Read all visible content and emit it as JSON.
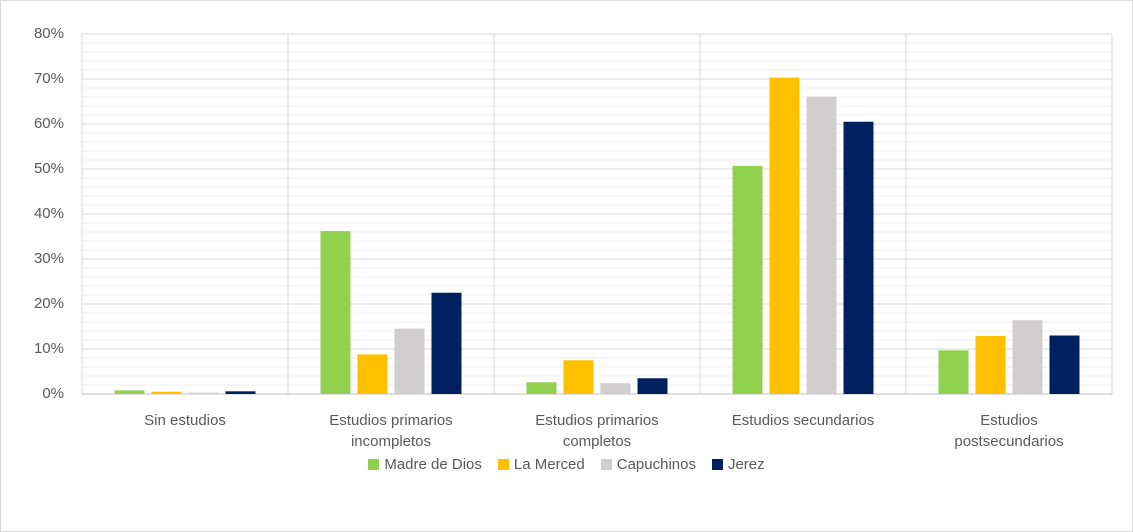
{
  "chart_data": {
    "type": "bar",
    "categories": [
      "Sin estudios",
      "Estudios primarios incompletos",
      "Estudios primarios completos",
      "Estudios secundarios",
      "Estudios postsecundarios"
    ],
    "series": [
      {
        "name": "Madre de Dios",
        "color": "#92d050",
        "values": [
          0.8,
          36.2,
          2.6,
          50.7,
          9.7
        ]
      },
      {
        "name": "La Merced",
        "color": "#ffc000",
        "values": [
          0.5,
          8.8,
          7.5,
          70.3,
          12.9
        ]
      },
      {
        "name": "Capuchinos",
        "color": "#d0cece",
        "values": [
          0.3,
          14.5,
          2.4,
          66.1,
          16.4
        ]
      },
      {
        "name": "Jerez",
        "color": "#002060",
        "values": [
          0.6,
          22.5,
          3.5,
          60.5,
          13.0
        ]
      }
    ],
    "ylim": [
      0,
      80
    ],
    "yticks": [
      {
        "value": 0,
        "label": "0%"
      },
      {
        "value": 10,
        "label": "10%"
      },
      {
        "value": 20,
        "label": "20%"
      },
      {
        "value": 30,
        "label": "30%"
      },
      {
        "value": 40,
        "label": "40%"
      },
      {
        "value": 50,
        "label": "50%"
      },
      {
        "value": 60,
        "label": "60%"
      },
      {
        "value": 70,
        "label": "70%"
      },
      {
        "value": 80,
        "label": "80%"
      }
    ],
    "grid": true,
    "legend": "bottom"
  }
}
